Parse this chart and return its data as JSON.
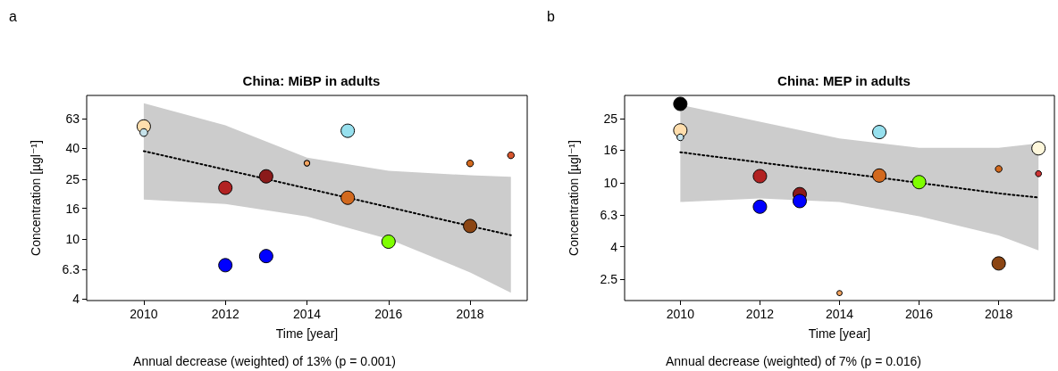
{
  "chart_data": [
    {
      "type": "bubble",
      "title": "China: MiBP in adults",
      "xlabel": "Time [year]",
      "ylabel": "Concentration [µgl⁻¹]",
      "annotations": [
        "a",
        "Annual decrease (weighted) of 13% (p = 0.001)"
      ],
      "log": "y",
      "xlim": [
        2008.6,
        2019.4
      ],
      "xticks": [
        2010,
        2012,
        2014,
        2016,
        2018
      ],
      "ylim": [
        3.9,
        90
      ],
      "yticks": [
        4,
        6.3,
        10,
        16,
        25,
        40,
        63
      ],
      "series": [
        {
          "marker": "circle",
          "x": [
            2010,
            2010,
            2012,
            2012,
            2013,
            2013,
            2014,
            2015,
            2015,
            2016,
            2018,
            2018,
            2019
          ],
          "values": [
            56,
            51,
            21.9,
            6.7,
            26.1,
            7.7,
            31.9,
            52.4,
            18.8,
            9.6,
            12.2,
            31.8,
            36
          ],
          "sizes": [
            1,
            0.33,
            1,
            1,
            1,
            1,
            0.18,
            1,
            1,
            1,
            1,
            0.25,
            0.25
          ],
          "colors": [
            "#ffdead",
            "#c6e2ea",
            "#b22222",
            "#0000ff",
            "#8b1a1a",
            "#0000ff",
            "#f4a460",
            "#97e0ee",
            "#d2691e",
            "#7fff00",
            "#8b4513",
            "#d2691e",
            "#d8562e"
          ]
        },
        {
          "type": "line",
          "line_style": "dotted",
          "color": "#000000",
          "x": [
            2010,
            2012,
            2014,
            2016,
            2018,
            2019
          ],
          "values": [
            38.4,
            28.9,
            21.7,
            16.3,
            12.2,
            10.6
          ],
          "lower": [
            18.3,
            17.1,
            14.1,
            10,
            6,
            4.4
          ],
          "upper": [
            80,
            57,
            34.7,
            28.4,
            26.5,
            25.9
          ],
          "marker": "none"
        }
      ]
    },
    {
      "type": "bubble",
      "title": "China: MEP in adults",
      "xlabel": "Time [year]",
      "ylabel": "Concentration [µgl⁻¹]",
      "annotations": [
        "b",
        "Annual decrease (weighted) of 7% (p = 0.016)"
      ],
      "log": "y",
      "xlim": [
        2008.6,
        2019.4
      ],
      "xticks": [
        2010,
        2012,
        2014,
        2016,
        2018
      ],
      "ylim": [
        1.85,
        35
      ],
      "yticks": [
        2.5,
        4,
        6.3,
        10,
        16,
        25
      ],
      "series": [
        {
          "marker": "circle",
          "x": [
            2010,
            2010,
            2010,
            2012,
            2012,
            2013,
            2013,
            2014,
            2015,
            2015,
            2016,
            2018,
            2018,
            2019,
            2019
          ],
          "values": [
            31,
            21.2,
            19.2,
            11,
            7.1,
            8.5,
            7.7,
            2.06,
            20.7,
            11.1,
            10.1,
            3.15,
            12.2,
            16.4,
            11.4
          ],
          "sizes": [
            1,
            1,
            0.25,
            1,
            1,
            1,
            1,
            0.15,
            1,
            1,
            1,
            1,
            0.25,
            1,
            0.2
          ],
          "colors": [
            "#000000",
            "#ffdead",
            "#c6e2ea",
            "#b22222",
            "#0000ff",
            "#8b1a1a",
            "#0000ff",
            "#f4a460",
            "#97e0ee",
            "#d2691e",
            "#7fff00",
            "#8b4513",
            "#d2691e",
            "#fff8dc",
            "#cd3333"
          ]
        },
        {
          "type": "line",
          "line_style": "dotted",
          "color": "#000000",
          "x": [
            2010,
            2012,
            2014,
            2016,
            2018,
            2019
          ],
          "values": [
            15.5,
            13.4,
            11.6,
            10,
            8.6,
            8.1
          ],
          "lower": [
            7.6,
            8,
            7.6,
            6.2,
            4.7,
            3.8
          ],
          "upper": [
            30.6,
            24,
            18.9,
            16.5,
            16.5,
            17.6
          ],
          "marker": "none"
        }
      ]
    }
  ]
}
